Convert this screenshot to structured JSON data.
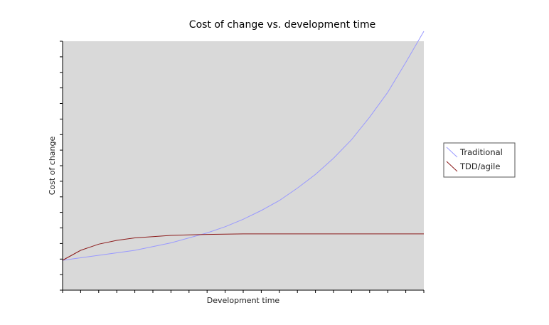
{
  "chart_data": {
    "type": "line",
    "title": "Cost of change vs. development time",
    "xlabel": "Development time",
    "ylabel": "Cost of change",
    "xlim": [
      0,
      10
    ],
    "ylim": [
      0,
      10
    ],
    "x_tick_count": 20,
    "y_tick_count": 16,
    "x_tick_labels": [],
    "y_tick_labels": [],
    "grid": false,
    "legend_position": "right",
    "plot_background": "#d9d9d9",
    "series": [
      {
        "name": "Traditional",
        "color": "#9999ff",
        "x": [
          0,
          0.5,
          1,
          1.5,
          2,
          2.5,
          3,
          3.5,
          4,
          4.5,
          5,
          5.5,
          6,
          6.5,
          7,
          7.5,
          8,
          8.5,
          9,
          9.5,
          10
        ],
        "y": [
          1.2,
          1.3,
          1.4,
          1.5,
          1.6,
          1.75,
          1.9,
          2.1,
          2.3,
          2.55,
          2.85,
          3.2,
          3.6,
          4.1,
          4.65,
          5.3,
          6.05,
          6.95,
          7.95,
          9.15,
          10.45
        ]
      },
      {
        "name": "TDD/agile",
        "color": "#8b1a1a",
        "x": [
          0,
          0.5,
          1,
          1.5,
          2,
          2.5,
          3,
          3.5,
          4,
          4.5,
          5,
          5.5,
          6,
          6.5,
          7,
          7.5,
          8,
          8.5,
          9,
          9.5,
          10
        ],
        "y": [
          1.2,
          1.6,
          1.85,
          2.0,
          2.1,
          2.15,
          2.2,
          2.22,
          2.24,
          2.25,
          2.26,
          2.26,
          2.26,
          2.26,
          2.26,
          2.26,
          2.26,
          2.26,
          2.26,
          2.26,
          2.26
        ]
      }
    ]
  }
}
